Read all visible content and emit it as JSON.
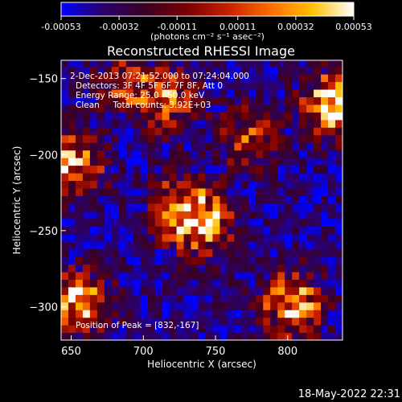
{
  "colorbar": {
    "ticks": [
      "-0.00053",
      "-0.00032",
      "-0.00011",
      "0.00011",
      "0.00032",
      "0.00053"
    ],
    "tick_values": [
      -0.00053,
      -0.00032,
      -0.00011,
      0.00011,
      0.00032,
      0.00053
    ],
    "range": [
      -0.00053,
      0.00053
    ],
    "stops": [
      "#0000ff",
      "#2b006b",
      "#3a0026",
      "#7a0000",
      "#c82000",
      "#ff6a00",
      "#ffc000",
      "#ffffff"
    ]
  },
  "units_label": "(photons cm⁻² s⁻¹ asec⁻²)",
  "chart_data": {
    "type": "heatmap",
    "title": "Reconstructed RHESSI Image",
    "xlabel": "Heliocentric X (arcsec)",
    "ylabel": "Heliocentric Y (arcsec)",
    "xlim": [
      643,
      838
    ],
    "ylim": [
      -322,
      -138
    ],
    "x_ticks": [
      650,
      700,
      750,
      800
    ],
    "y_ticks": [
      -150,
      -200,
      -250,
      -300
    ],
    "colormap": "red-temperature with negative lobe in blue/purple",
    "bright_regions": [
      {
        "x": 832,
        "y": -167,
        "level": 1.0
      },
      {
        "x": 803,
        "y": -298,
        "level": 0.9
      },
      {
        "x": 655,
        "y": -297,
        "level": 0.85
      },
      {
        "x": 652,
        "y": -207,
        "level": 0.8
      },
      {
        "x": 725,
        "y": -235,
        "level": 0.75
      },
      {
        "x": 742,
        "y": -245,
        "level": 0.7
      },
      {
        "x": 718,
        "y": -165,
        "level": 0.6
      },
      {
        "x": 688,
        "y": -152,
        "level": 0.55
      },
      {
        "x": 772,
        "y": -188,
        "level": 0.5
      }
    ],
    "annotations": [
      "2-Dec-2013 07:21:52.000 to 07:24:04.000",
      "Detectors: 3F 4F 5F 6F 7F 8F, Att 0",
      "Energy Range: 25.0 - 50.0 keV",
      "Clean     Total counts: 3.92E+03"
    ],
    "peak_label": "Position of Peak = [832,-167]"
  },
  "footer_date": "18-May-2022 22:31"
}
